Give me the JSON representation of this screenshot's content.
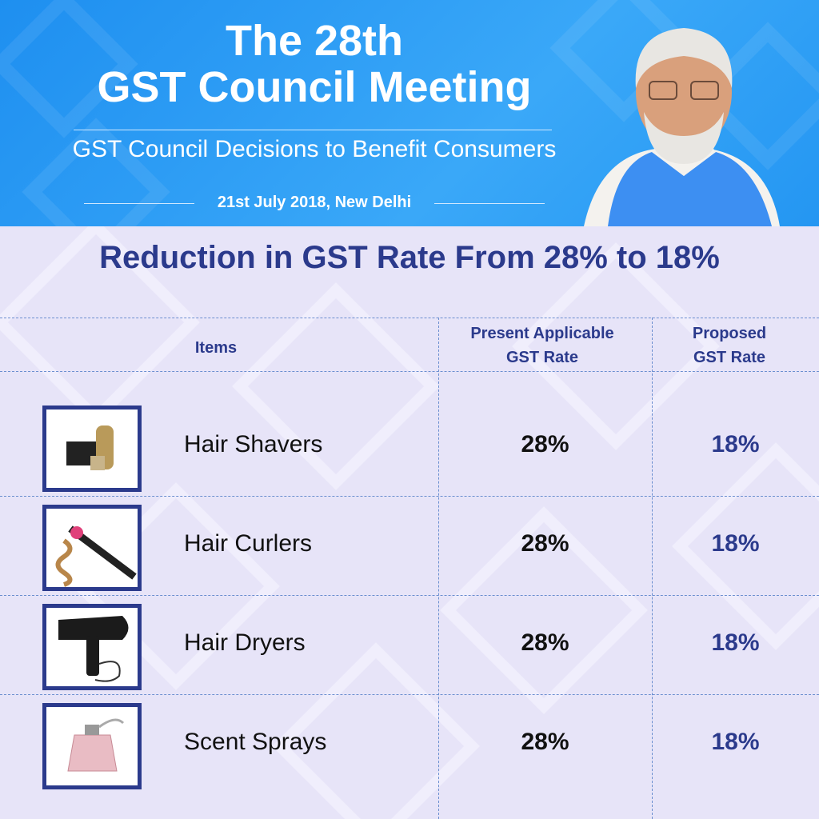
{
  "header": {
    "title_lines": [
      "The 28th",
      "GST Council Meeting"
    ],
    "subtitle": "GST Council Decisions to Benefit Consumers",
    "date": "21st July 2018, New Delhi"
  },
  "heading": "Reduction in GST Rate From 28% to 18%",
  "table": {
    "columns": [
      "Items",
      "Present Applicable GST Rate",
      "Proposed GST Rate"
    ],
    "rows": [
      [
        "Hair Shavers",
        "28%",
        "18%"
      ],
      [
        "Hair Curlers",
        "28%",
        "18%"
      ],
      [
        "Hair Dryers",
        "28%",
        "18%"
      ],
      [
        "Scent Sprays",
        "28%",
        "18%"
      ]
    ]
  }
}
